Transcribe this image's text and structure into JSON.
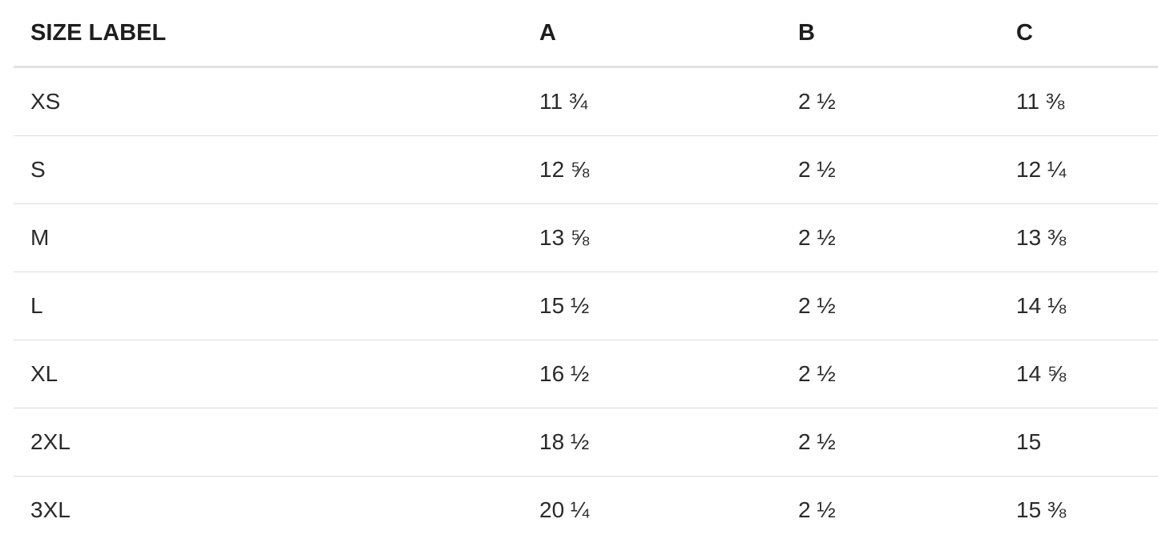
{
  "table": {
    "headers": [
      "SIZE LABEL",
      "A",
      "B",
      "C"
    ],
    "rows": [
      [
        "XS",
        "11 ¾",
        "2 ½",
        "11 ⅜"
      ],
      [
        "S",
        "12 ⅝",
        "2 ½",
        "12 ¼"
      ],
      [
        "M",
        "13 ⅝",
        "2 ½",
        "13 ⅜"
      ],
      [
        "L",
        "15 ½",
        "2 ½",
        "14 ⅛"
      ],
      [
        "XL",
        "16 ½",
        "2 ½",
        "14 ⅝"
      ],
      [
        "2XL",
        "18 ½",
        "2 ½",
        "15"
      ],
      [
        "3XL",
        "20 ¼",
        "2 ½",
        "15 ⅜"
      ]
    ]
  }
}
